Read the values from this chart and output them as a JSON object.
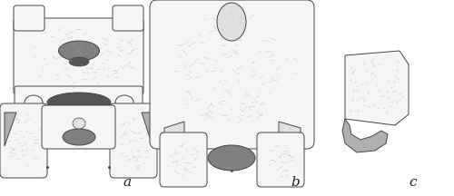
{
  "figure_width": 5.0,
  "figure_height": 2.16,
  "dpi": 100,
  "bg_color": "#ffffff",
  "labels": [
    "a",
    "b",
    "c"
  ],
  "label_fontsize": 11,
  "line_color": "#444444",
  "fill_white": "#f5f5f5",
  "fill_light": "#e0e0e0",
  "fill_mid": "#b0b0b0",
  "fill_dark": "#808080",
  "fill_very_dark": "#555555"
}
